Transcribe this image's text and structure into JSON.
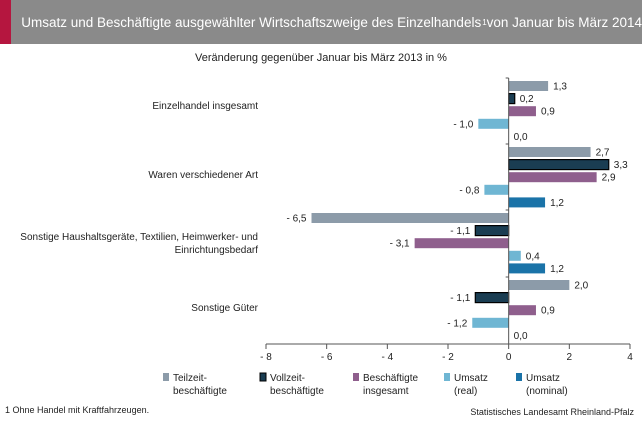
{
  "header": {
    "title": "Umsatz und Beschäftigte ausgewählter Wirtschaftszweige des Einzelhandels",
    "title_sup": "1",
    "title_suffix": " von Januar bis März 2014"
  },
  "colors": {
    "accent": "#b5163f",
    "header_bg": "#8a8a8a"
  },
  "footnote": "1 Ohne Handel mit Kraftfahrzeugen.",
  "source": "Statistisches Landesamt Rheinland-Pfalz",
  "chart_data": {
    "type": "bar",
    "orientation": "horizontal",
    "subtitle": "Veränderung gegenüber  Januar bis März 2013 in %",
    "categories": [
      [
        "Einzelhandel insgesamt"
      ],
      [
        "Waren verschiedener Art"
      ],
      [
        "Sonstige Haushaltsgeräte, Textilien, Heimwerker- und",
        "Einrichtungsbedarf"
      ],
      [
        "Sonstige Güter"
      ]
    ],
    "series": [
      {
        "name": [
          "Teilzeit-",
          "beschäftigte"
        ],
        "color": "#8c9ba9",
        "outline": false,
        "values": [
          1.3,
          2.7,
          -6.5,
          2.0
        ],
        "labels": [
          "1,3",
          "2,7",
          "- 6,5",
          "2,0"
        ]
      },
      {
        "name": [
          "Vollzeit-",
          "beschäftigte"
        ],
        "color": "#1a3d52",
        "outline": true,
        "values": [
          0.2,
          3.3,
          -1.1,
          -1.1
        ],
        "labels": [
          "0,2",
          "3,3",
          "- 1,1",
          "- 1,1"
        ]
      },
      {
        "name": [
          "Beschäftigte",
          "insgesamt"
        ],
        "color": "#8f5f8d",
        "outline": false,
        "values": [
          0.9,
          2.9,
          -3.1,
          0.9
        ],
        "labels": [
          "0,9",
          "2,9",
          "- 3,1",
          "0,9"
        ]
      },
      {
        "name": [
          "Umsatz",
          "(real)"
        ],
        "color": "#6fb6d3",
        "outline": false,
        "values": [
          -1.0,
          -0.8,
          0.4,
          -1.2
        ],
        "labels": [
          "- 1,0",
          "- 0,8",
          "0,4",
          "- 1,2"
        ]
      },
      {
        "name": [
          "Umsatz",
          "(nominal)"
        ],
        "color": "#1a73a8",
        "outline": false,
        "values": [
          0.0,
          1.2,
          1.2,
          0.0
        ],
        "labels": [
          "0,0",
          "1,2",
          "1,2",
          "0,0"
        ]
      }
    ],
    "xlim": [
      -8,
      4
    ],
    "xticks": [
      -8,
      -6,
      -4,
      -2,
      0,
      2,
      4
    ],
    "xtick_labels": [
      "- 8",
      "- 6",
      "- 4",
      "- 2",
      "0",
      "2",
      "4"
    ],
    "grid": false,
    "legend": "bottom"
  }
}
